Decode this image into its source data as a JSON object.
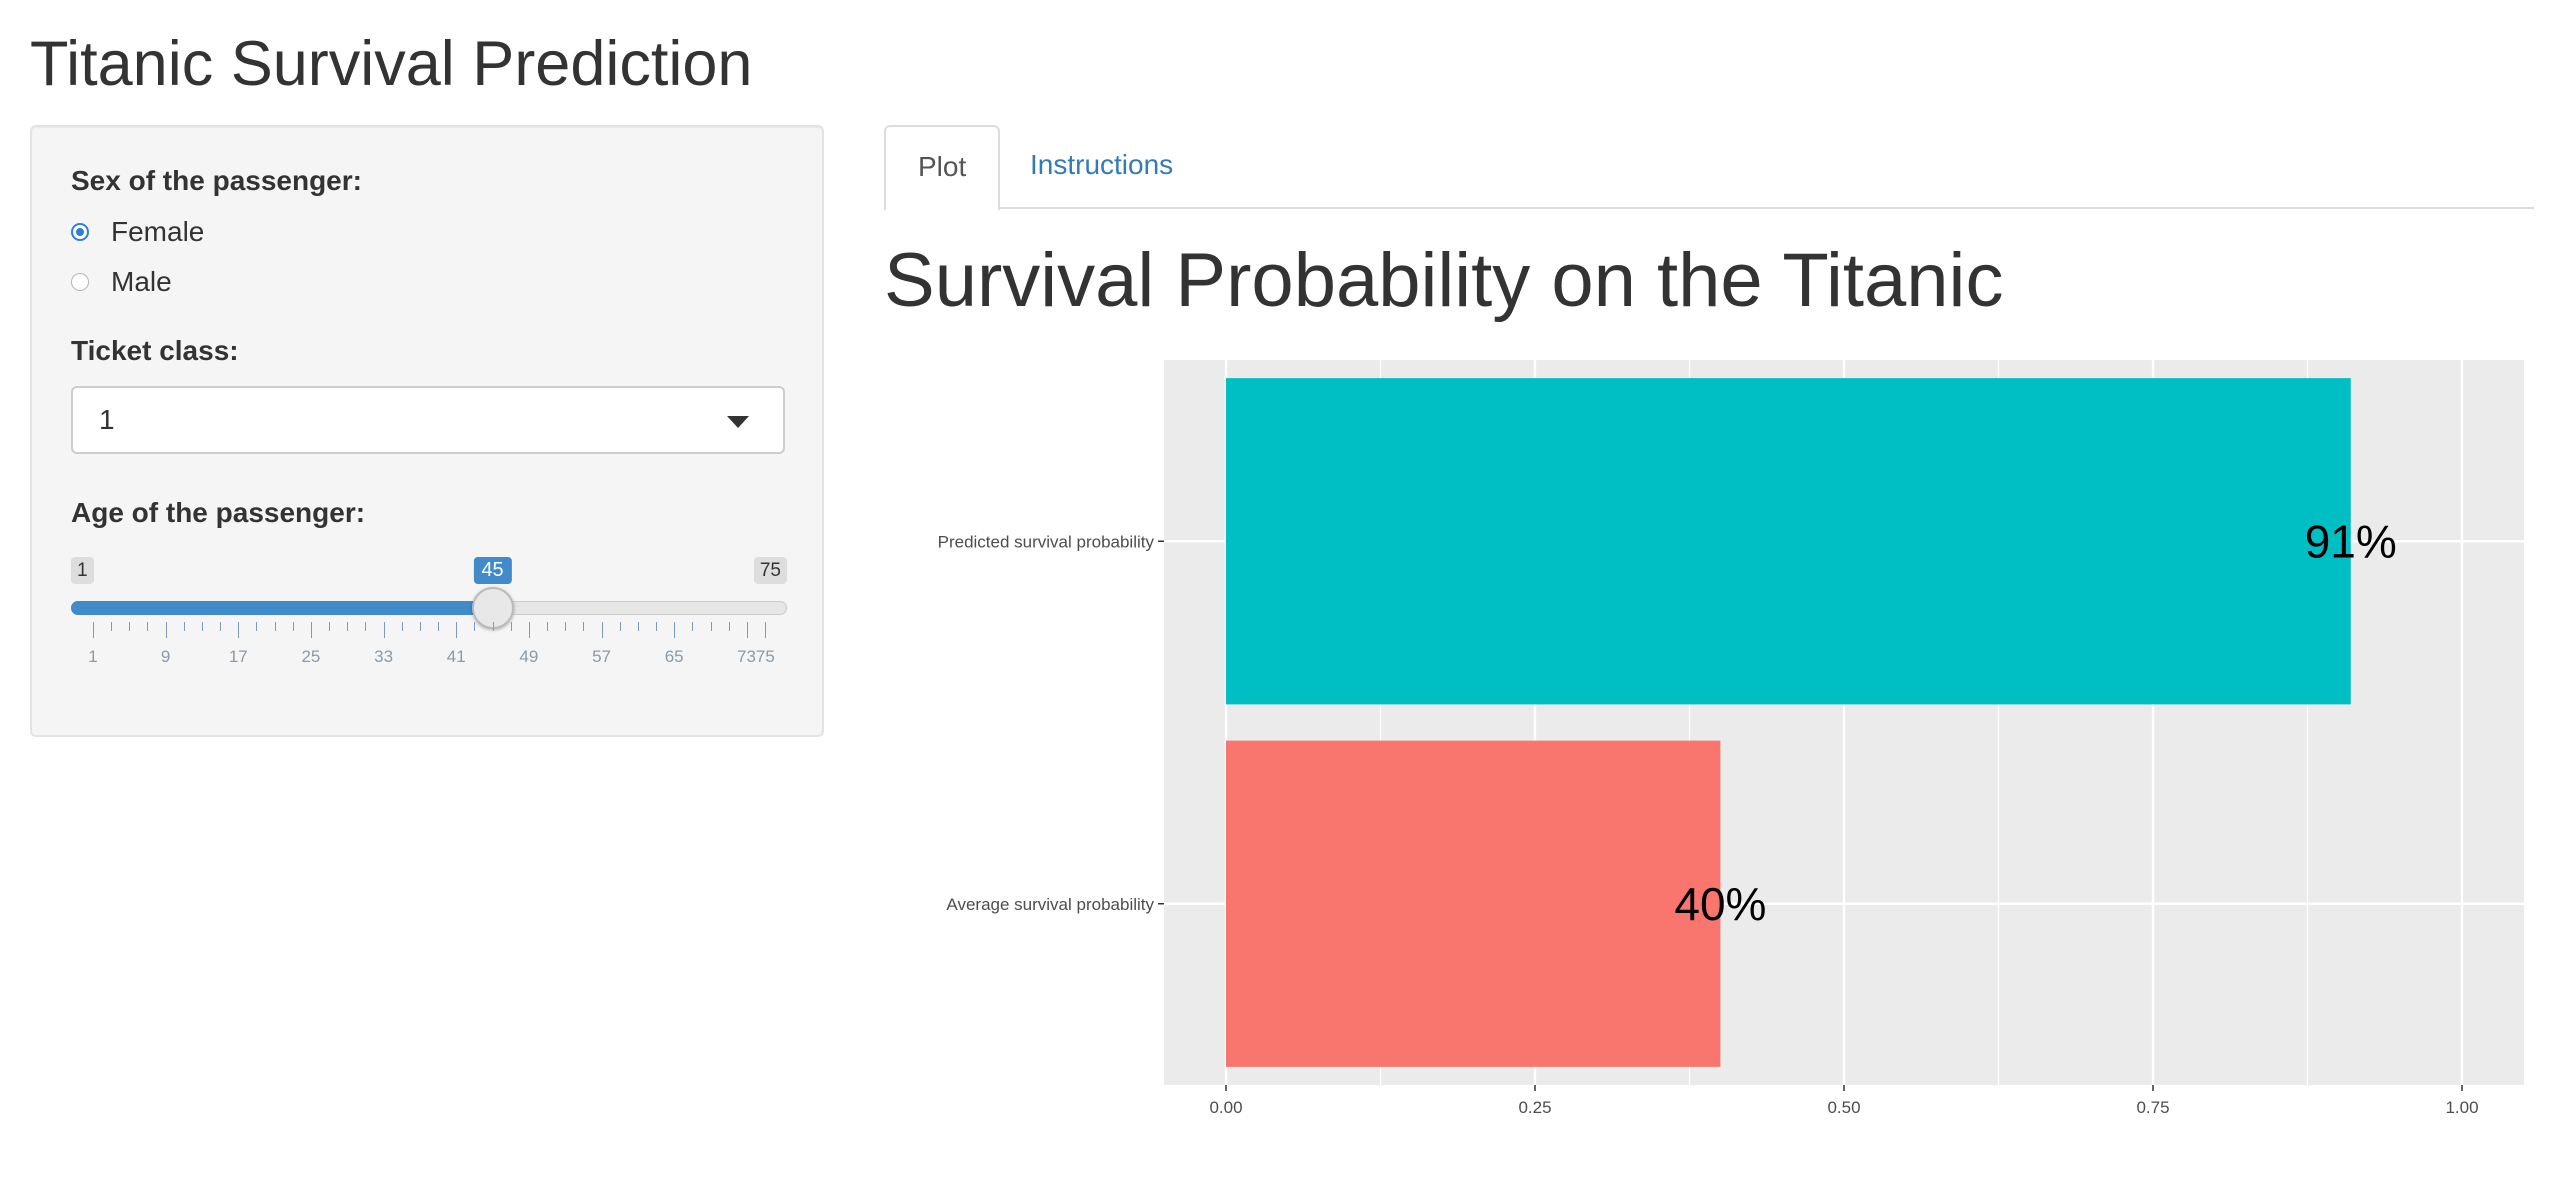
{
  "app": {
    "title": "Titanic Survival Prediction"
  },
  "sidebar": {
    "sex": {
      "label": "Sex of the passenger:",
      "options": [
        {
          "label": "Female",
          "checked": true
        },
        {
          "label": "Male",
          "checked": false
        }
      ]
    },
    "ticket_class": {
      "label": "Ticket class:",
      "value": "1"
    },
    "age": {
      "label": "Age of the passenger:",
      "min": "1",
      "max": "75",
      "value": "45",
      "value_fraction": 0.5946,
      "tick_labels": [
        "1",
        "9",
        "17",
        "25",
        "33",
        "41",
        "49",
        "57",
        "65",
        "7375"
      ]
    }
  },
  "main": {
    "tabs": [
      {
        "label": "Plot",
        "active": true
      },
      {
        "label": "Instructions",
        "active": false
      }
    ],
    "plot_title": "Survival Probability on the Titanic"
  },
  "chart_data": {
    "type": "bar",
    "orientation": "horizontal",
    "categories": [
      "Predicted survival probability",
      "Average survival probability"
    ],
    "values": [
      0.91,
      0.4
    ],
    "data_labels": [
      "91%",
      "40%"
    ],
    "colors": [
      "#00BFC4",
      "#F8766D"
    ],
    "xlim": [
      0,
      1
    ],
    "x_ticks": [
      "0.00",
      "0.25",
      "0.50",
      "0.75",
      "1.00"
    ],
    "grid": true,
    "panel_background": "#EBEBEB"
  },
  "colors": {
    "accent": "#428bca",
    "link": "#337ab7",
    "radio": "#2f7ed8"
  }
}
